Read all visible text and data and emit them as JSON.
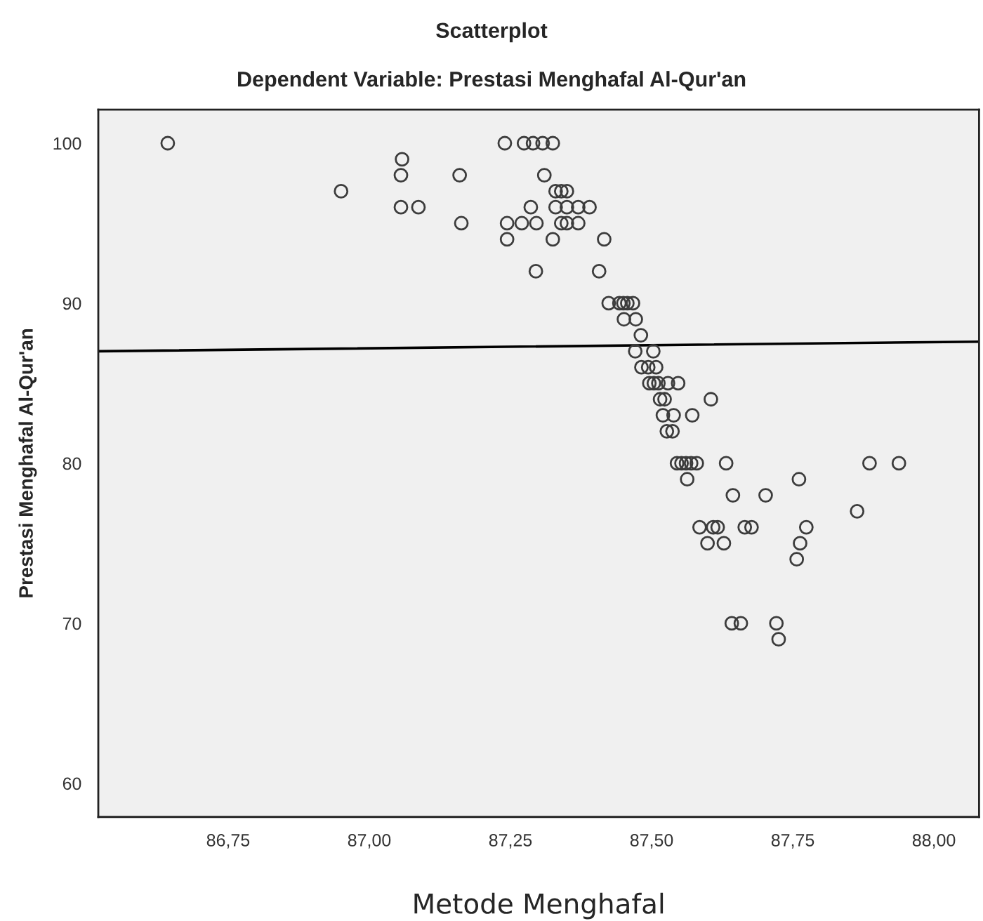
{
  "chart_data": {
    "type": "scatter",
    "title": "Scatterplot",
    "subtitle": "Dependent Variable: Prestasi Menghafal Al-Qur'an",
    "xlabel": "Metode Menghafal",
    "ylabel": "Prestasi Menghafal Al-Qur'an",
    "xlim": [
      86.52,
      88.08
    ],
    "ylim": [
      57.9,
      102.1
    ],
    "xticks": [
      {
        "value": 86.75,
        "label": "86,75"
      },
      {
        "value": 87.0,
        "label": "87,00"
      },
      {
        "value": 87.25,
        "label": "87,25"
      },
      {
        "value": 87.5,
        "label": "87,50"
      },
      {
        "value": 87.75,
        "label": "87,75"
      },
      {
        "value": 88.0,
        "label": "88,00"
      }
    ],
    "yticks": [
      60,
      70,
      80,
      90,
      100
    ],
    "grid": false,
    "series": [
      {
        "color": "#3c3c3c",
        "marker": "circle",
        "x": [
          86.643,
          86.95,
          87.058,
          87.056,
          87.056,
          87.087,
          87.16,
          87.163,
          87.24,
          87.274,
          87.29,
          87.307,
          87.244,
          87.244,
          87.27,
          87.296,
          87.286,
          87.31,
          87.295,
          87.325,
          87.33,
          87.34,
          87.35,
          87.33,
          87.35,
          87.34,
          87.35,
          87.37,
          87.325,
          87.37,
          87.39,
          87.416,
          87.407,
          87.424,
          87.443,
          87.45,
          87.457,
          87.467,
          87.451,
          87.472,
          87.481,
          87.471,
          87.503,
          87.482,
          87.494,
          87.508,
          87.496,
          87.504,
          87.512,
          87.529,
          87.547,
          87.605,
          87.515,
          87.523,
          87.52,
          87.539,
          87.572,
          87.527,
          87.537,
          87.545,
          87.553,
          87.561,
          87.57,
          87.58,
          87.632,
          87.563,
          87.886,
          87.938,
          87.761,
          87.644,
          87.702,
          87.864,
          87.585,
          87.609,
          87.617,
          87.665,
          87.677,
          87.774,
          87.599,
          87.628,
          87.763,
          87.757,
          87.642,
          87.658,
          87.721,
          87.725
        ],
        "values": [
          100,
          97,
          99,
          98,
          96,
          96,
          98,
          95,
          100,
          100,
          100,
          100,
          95,
          94,
          95,
          95,
          96,
          98,
          92,
          100,
          97,
          97,
          97,
          96,
          96,
          95,
          95,
          95,
          94,
          96,
          96,
          94,
          92,
          90,
          90,
          90,
          90,
          90,
          89,
          89,
          88,
          87,
          87,
          86,
          86,
          86,
          85,
          85,
          85,
          85,
          85,
          84,
          84,
          84,
          83,
          83,
          83,
          82,
          82,
          80,
          80,
          80,
          80,
          80,
          80,
          79,
          80,
          80,
          79,
          78,
          78,
          77,
          76,
          76,
          76,
          76,
          76,
          76,
          75,
          75,
          75,
          74,
          70,
          70,
          70,
          69
        ]
      },
      {
        "type": "line",
        "marker": "none",
        "color": "#000000",
        "x": [
          86.52,
          88.08
        ],
        "values": [
          87.0,
          87.6
        ]
      }
    ]
  }
}
